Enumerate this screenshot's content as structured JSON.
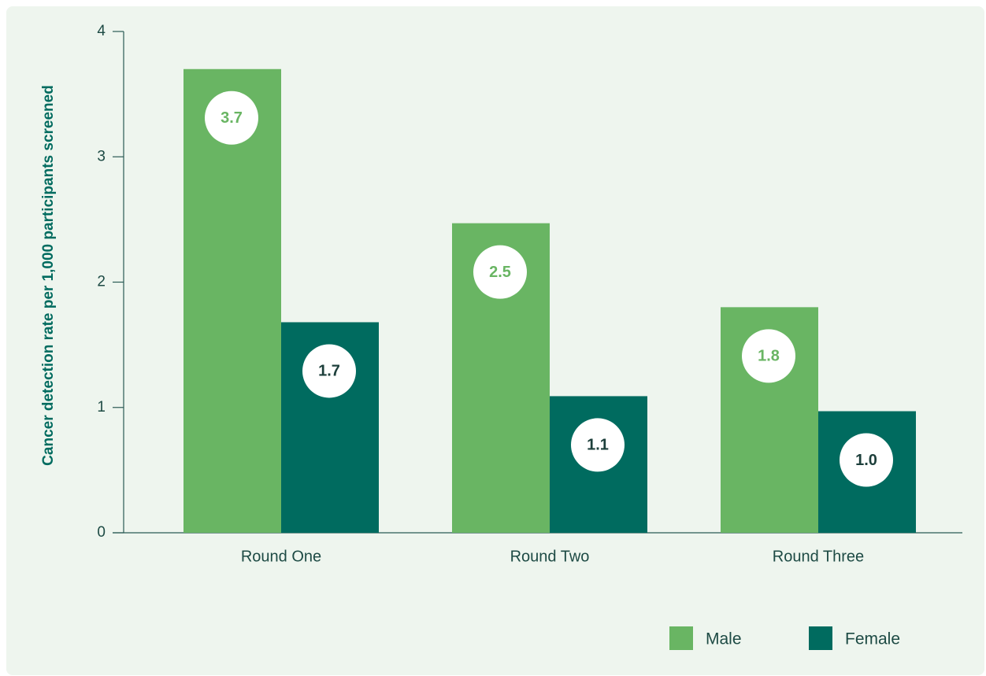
{
  "chart_data": {
    "type": "bar",
    "y_label": "Cancer detection rate per 1,000 participants screened",
    "categories": [
      "Round One",
      "Round Two",
      "Round Three"
    ],
    "series": [
      {
        "name": "Male",
        "color": "#69b563",
        "values": [
          3.7,
          2.47,
          1.8
        ],
        "value_labels": [
          "3.7",
          "2.5",
          "1.8"
        ]
      },
      {
        "name": "Female",
        "color": "#006b5f",
        "values": [
          1.68,
          1.09,
          0.97
        ],
        "value_labels": [
          "1.7",
          "1.1",
          "1.0"
        ]
      }
    ],
    "ylim": [
      0,
      4
    ],
    "yticks": [
      0,
      1,
      2,
      3,
      4
    ],
    "legend": "bottom-right"
  }
}
